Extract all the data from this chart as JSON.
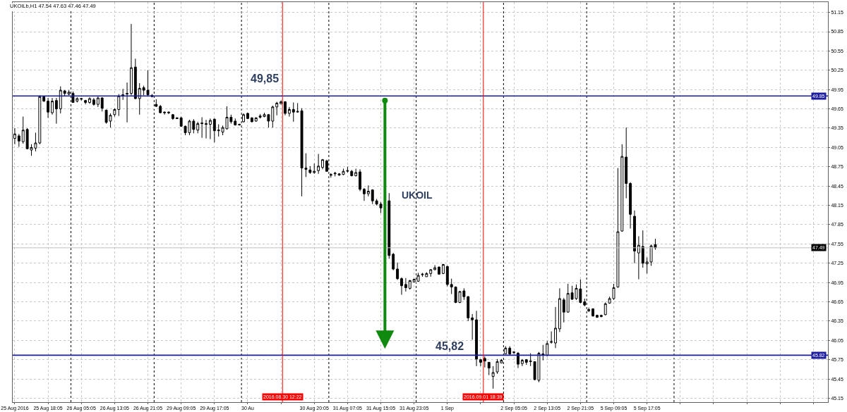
{
  "chart_data": {
    "type": "candlestick",
    "title": "UKOILb,H1 47.54 47.63 47.46 47.49",
    "color": "#000000",
    "grid": true,
    "categories": [
      "25 Aug 2016",
      null,
      null,
      null,
      null,
      null,
      null,
      null,
      "25 Aug 18:05",
      null,
      null,
      null,
      null,
      null,
      null,
      null,
      "26 Aug 05:05",
      null,
      null,
      null,
      null,
      null,
      null,
      null,
      "26 Aug 13:05",
      null,
      null,
      null,
      null,
      null,
      null,
      null,
      "26 Aug 21:05",
      null,
      null,
      null,
      null,
      null,
      null,
      null,
      "29 Aug 09:05",
      null,
      null,
      null,
      null,
      null,
      null,
      null,
      "29 Aug 17:05",
      null,
      null,
      null,
      null,
      null,
      null,
      null,
      "30 Au",
      null,
      null,
      null,
      null,
      null,
      null,
      null,
      null,
      null,
      null,
      null,
      null,
      null,
      null,
      null,
      "30 Aug 20:05",
      null,
      null,
      null,
      null,
      null,
      null,
      null,
      "31 Aug 07:05",
      null,
      null,
      null,
      null,
      null,
      null,
      null,
      "31 Aug 15:05",
      null,
      null,
      null,
      null,
      null,
      null,
      null,
      "31 Aug 23:05",
      null,
      null,
      null,
      null,
      null,
      null,
      null,
      "1 Sep",
      null,
      null,
      null,
      null,
      null,
      null,
      null,
      null,
      null,
      null,
      null,
      null,
      null,
      null,
      null,
      "2 Sep 05:05",
      null,
      null,
      null,
      null,
      null,
      null,
      null,
      "2 Sep 13:05",
      null,
      null,
      null,
      null,
      null,
      null,
      null,
      "2 Sep 21:05",
      null,
      null,
      null,
      null,
      null,
      null,
      null,
      "5 Sep 09:05",
      null,
      null,
      null,
      null,
      null,
      null,
      null,
      "5 Sep 17:05",
      null,
      null,
      null,
      null,
      null,
      null,
      null,
      null,
      null,
      null,
      null,
      null,
      null,
      null,
      null,
      null,
      null,
      null,
      null,
      null,
      null,
      null,
      null,
      null,
      null,
      null,
      null,
      null,
      null,
      null,
      null,
      null,
      null,
      null,
      null,
      null,
      null,
      null,
      null,
      null,
      null,
      null,
      null
    ],
    "ohlc": [
      [
        49.19,
        49.35,
        49.1,
        49.26
      ],
      [
        49.23,
        49.26,
        49.06,
        49.15
      ],
      [
        49.14,
        49.53,
        49.11,
        49.32
      ],
      [
        49.33,
        49.35,
        49.02,
        49.03
      ],
      [
        49.01,
        49.1,
        48.92,
        49.05
      ],
      [
        49.04,
        49.28,
        48.99,
        49.12
      ],
      [
        49.12,
        49.86,
        49.1,
        49.84
      ],
      [
        49.84,
        49.85,
        49.76,
        49.77
      ],
      [
        49.77,
        49.82,
        49.51,
        49.6
      ],
      [
        49.59,
        49.82,
        49.56,
        49.77
      ],
      [
        49.78,
        49.82,
        49.42,
        49.65
      ],
      [
        49.65,
        50.0,
        49.58,
        49.94
      ],
      [
        49.93,
        49.94,
        49.85,
        49.89
      ],
      [
        49.88,
        49.94,
        49.86,
        49.91
      ],
      [
        49.89,
        49.92,
        49.75,
        49.75
      ],
      [
        49.77,
        49.83,
        49.75,
        49.81
      ],
      [
        49.8,
        49.82,
        49.78,
        49.81
      ],
      [
        49.78,
        49.79,
        49.72,
        49.75
      ],
      [
        49.75,
        49.83,
        49.73,
        49.81
      ],
      [
        49.79,
        49.82,
        49.7,
        49.72
      ],
      [
        49.72,
        49.84,
        49.68,
        49.82
      ],
      [
        49.82,
        49.83,
        49.61,
        49.66
      ],
      [
        49.63,
        49.64,
        49.42,
        49.44
      ],
      [
        49.46,
        49.58,
        49.36,
        49.55
      ],
      [
        49.56,
        49.66,
        49.53,
        49.64
      ],
      [
        49.64,
        49.88,
        49.54,
        49.85
      ],
      [
        49.85,
        49.96,
        49.79,
        49.87
      ],
      [
        49.88,
        50.06,
        49.44,
        49.89
      ],
      [
        49.89,
        50.97,
        49.86,
        50.29
      ],
      [
        50.3,
        50.43,
        49.8,
        49.81
      ],
      [
        49.81,
        50.05,
        49.56,
        49.97
      ],
      [
        49.98,
        50.01,
        49.86,
        49.94
      ],
      [
        49.94,
        50.25,
        49.85,
        49.87
      ],
      [
        49.86,
        49.88,
        49.83,
        49.84
      ],
      [
        49.72,
        49.8,
        49.68,
        49.69
      ],
      [
        49.69,
        49.71,
        49.58,
        49.59
      ],
      [
        49.6,
        49.61,
        49.56,
        49.59
      ],
      [
        49.6,
        49.61,
        49.57,
        49.59
      ],
      [
        49.56,
        49.57,
        49.48,
        49.5
      ],
      [
        49.51,
        49.52,
        49.5,
        49.5
      ],
      [
        49.51,
        49.53,
        49.37,
        49.38
      ],
      [
        49.38,
        49.39,
        49.24,
        49.28
      ],
      [
        49.28,
        49.48,
        49.24,
        49.46
      ],
      [
        49.46,
        49.49,
        49.27,
        49.33
      ],
      [
        49.32,
        49.45,
        49.27,
        49.42
      ],
      [
        49.42,
        49.52,
        49.2,
        49.43
      ],
      [
        49.42,
        49.48,
        49.19,
        49.41
      ],
      [
        49.41,
        49.5,
        49.18,
        49.47
      ],
      [
        49.49,
        49.5,
        49.13,
        49.31
      ],
      [
        49.31,
        49.41,
        49.22,
        49.32
      ],
      [
        49.29,
        49.39,
        49.24,
        49.36
      ],
      [
        49.34,
        49.69,
        49.33,
        49.52
      ],
      [
        49.52,
        49.56,
        49.42,
        49.45
      ],
      [
        49.46,
        49.5,
        49.39,
        49.4
      ],
      [
        49.4,
        49.42,
        49.39,
        49.41
      ],
      [
        49.45,
        49.58,
        49.44,
        49.56
      ],
      [
        49.58,
        49.59,
        49.49,
        49.5
      ],
      [
        49.51,
        49.52,
        49.44,
        49.45
      ],
      [
        49.46,
        49.52,
        49.45,
        49.51
      ],
      [
        49.52,
        49.57,
        49.5,
        49.54
      ],
      [
        49.53,
        49.59,
        49.52,
        49.56
      ],
      [
        49.56,
        49.57,
        49.36,
        49.46
      ],
      [
        49.46,
        49.7,
        49.36,
        49.68
      ],
      [
        49.68,
        49.76,
        49.55,
        49.74
      ],
      [
        49.73,
        49.78,
        49.72,
        49.76
      ],
      [
        49.76,
        49.77,
        49.55,
        49.58
      ],
      [
        49.58,
        49.68,
        49.53,
        49.64
      ],
      [
        49.64,
        49.75,
        49.45,
        49.6
      ],
      [
        49.6,
        49.74,
        49.59,
        49.61
      ],
      [
        49.62,
        49.66,
        48.29,
        48.73
      ],
      [
        48.73,
        48.96,
        48.59,
        48.71
      ],
      [
        48.7,
        48.76,
        48.64,
        48.66
      ],
      [
        48.66,
        48.8,
        48.64,
        48.68
      ],
      [
        48.69,
        48.95,
        48.64,
        48.76
      ],
      [
        48.74,
        48.87,
        48.71,
        48.86
      ],
      [
        48.84,
        48.86,
        48.67,
        48.68
      ],
      [
        48.63,
        48.65,
        48.58,
        48.62
      ],
      [
        48.64,
        48.67,
        48.6,
        48.65
      ],
      [
        48.62,
        48.65,
        48.61,
        48.64
      ],
      [
        48.63,
        48.72,
        48.62,
        48.68
      ],
      [
        48.68,
        48.75,
        48.66,
        48.69
      ],
      [
        48.68,
        48.7,
        48.6,
        48.61
      ],
      [
        48.61,
        48.72,
        48.6,
        48.66
      ],
      [
        48.67,
        48.71,
        48.37,
        48.4
      ],
      [
        48.4,
        48.42,
        48.22,
        48.33
      ],
      [
        48.33,
        48.46,
        48.29,
        48.37
      ],
      [
        48.39,
        48.4,
        48.17,
        48.22
      ],
      [
        48.22,
        48.25,
        48.15,
        48.17
      ],
      [
        48.17,
        48.2,
        48.03,
        48.11
      ],
      null,
      [
        48.22,
        48.34,
        47.32,
        47.37
      ],
      [
        47.39,
        47.41,
        47.14,
        47.16
      ],
      [
        47.16,
        47.26,
        46.99,
        47.01
      ],
      [
        47.01,
        47.03,
        46.76,
        46.9
      ],
      [
        46.92,
        47.02,
        46.81,
        46.87
      ],
      [
        46.86,
        46.99,
        46.84,
        46.98
      ],
      [
        46.96,
        47.01,
        46.95,
        47.0
      ],
      [
        46.97,
        47.1,
        46.96,
        47.06
      ],
      [
        47.07,
        47.1,
        47.04,
        47.08
      ],
      [
        47.04,
        47.11,
        47.04,
        47.09
      ],
      [
        47.09,
        47.16,
        47.04,
        47.15
      ],
      [
        47.15,
        47.22,
        47.14,
        47.18
      ],
      [
        47.19,
        47.2,
        47.07,
        47.08
      ],
      [
        47.09,
        47.24,
        47.08,
        47.23
      ],
      [
        47.2,
        47.21,
        46.89,
        46.92
      ],
      [
        46.92,
        47.01,
        46.77,
        46.88
      ],
      [
        46.88,
        46.89,
        46.63,
        46.64
      ],
      [
        46.64,
        46.82,
        46.63,
        46.81
      ],
      [
        46.82,
        46.86,
        46.68,
        46.73
      ],
      [
        46.73,
        46.74,
        46.35,
        46.4
      ],
      [
        46.4,
        46.46,
        46.06,
        46.37
      ],
      [
        46.37,
        46.51,
        45.65,
        45.76
      ],
      [
        45.75,
        45.76,
        45.65,
        45.71
      ],
      [
        45.77,
        45.8,
        45.63,
        45.73
      ],
      [
        45.71,
        45.71,
        45.51,
        45.62
      ],
      [
        45.49,
        45.65,
        45.3,
        45.55
      ],
      [
        45.56,
        45.76,
        45.53,
        45.72
      ],
      [
        45.7,
        45.76,
        45.7,
        45.74
      ],
      [
        45.84,
        45.96,
        45.84,
        45.93
      ],
      [
        45.93,
        45.96,
        45.82,
        45.84
      ],
      [
        45.86,
        45.88,
        45.84,
        45.87
      ],
      [
        45.85,
        45.87,
        45.62,
        45.68
      ],
      [
        45.69,
        45.76,
        45.65,
        45.74
      ],
      [
        45.75,
        45.76,
        45.67,
        45.71
      ],
      [
        45.72,
        45.85,
        45.65,
        45.73
      ],
      [
        45.72,
        45.72,
        45.43,
        45.44
      ],
      [
        45.43,
        45.87,
        45.4,
        45.85
      ],
      [
        45.84,
        45.98,
        45.74,
        45.82
      ],
      [
        45.82,
        46.04,
        45.8,
        46.0
      ],
      [
        46.02,
        46.19,
        46.0,
        46.03
      ],
      [
        46.01,
        46.57,
        45.93,
        46.24
      ],
      [
        46.23,
        46.86,
        46.18,
        46.7
      ],
      [
        46.68,
        46.71,
        46.33,
        46.49
      ],
      [
        46.49,
        46.93,
        46.48,
        46.78
      ],
      [
        46.79,
        46.9,
        46.68,
        46.69
      ],
      [
        46.7,
        46.92,
        46.68,
        46.86
      ],
      [
        46.85,
        47.0,
        46.63,
        46.64
      ],
      [
        46.65,
        46.7,
        46.58,
        46.6
      ],
      [
        46.51,
        46.56,
        46.49,
        46.53
      ],
      [
        46.54,
        46.55,
        46.42,
        46.43
      ],
      [
        46.44,
        46.45,
        46.4,
        46.41
      ],
      [
        46.42,
        46.45,
        46.41,
        46.44
      ],
      [
        46.45,
        46.64,
        46.44,
        46.62
      ],
      [
        46.63,
        46.73,
        46.62,
        46.7
      ],
      [
        46.7,
        46.93,
        46.68,
        46.87
      ],
      [
        46.88,
        48.73,
        46.87,
        47.74
      ],
      [
        47.75,
        49.1,
        47.74,
        48.91
      ],
      [
        48.9,
        49.36,
        48.26,
        48.49
      ],
      [
        48.49,
        48.51,
        47.79,
        48.01
      ],
      [
        47.98,
        48.07,
        47.25,
        47.44
      ],
      [
        47.41,
        47.67,
        47.0,
        47.53
      ],
      [
        47.51,
        47.76,
        47.18,
        47.25
      ],
      [
        47.24,
        47.34,
        47.09,
        47.27
      ],
      [
        47.27,
        47.54,
        47.21,
        47.52
      ],
      [
        47.54,
        47.63,
        47.46,
        47.49
      ],
      null,
      null,
      null,
      null,
      null,
      null,
      null,
      null,
      null,
      null,
      null,
      null,
      null,
      null,
      null,
      null,
      null,
      null,
      null,
      null,
      null,
      null,
      null,
      null,
      null,
      null,
      null,
      null,
      null,
      null,
      null,
      null,
      null,
      null,
      null,
      null,
      null,
      null,
      null,
      null,
      null
    ],
    "ylim": [
      45.09,
      51.31
    ],
    "yticks": [
      45.15,
      45.45,
      45.75,
      46.05,
      46.35,
      46.65,
      46.95,
      47.25,
      47.55,
      47.85,
      48.15,
      48.45,
      48.75,
      49.05,
      49.35,
      49.65,
      49.95,
      50.25,
      50.55,
      50.85,
      51.15
    ],
    "ref_lines": [
      {
        "axis": "y",
        "value": 49.85,
        "label": "49.85",
        "color": "#1c1ca0"
      },
      {
        "axis": "y",
        "value": 45.82,
        "label": "45.82",
        "color": "#1c1ca0"
      },
      {
        "axis": "y",
        "value": 47.49,
        "label": "47.49",
        "color": "#c0c0c0"
      }
    ],
    "annotations": [
      {
        "text": "49,85",
        "y": 49.85
      },
      {
        "text": "45,82",
        "y": 45.82
      },
      "UKOIL",
      "2016.08.30 12:22",
      "2016.09.01 18:39"
    ]
  }
}
